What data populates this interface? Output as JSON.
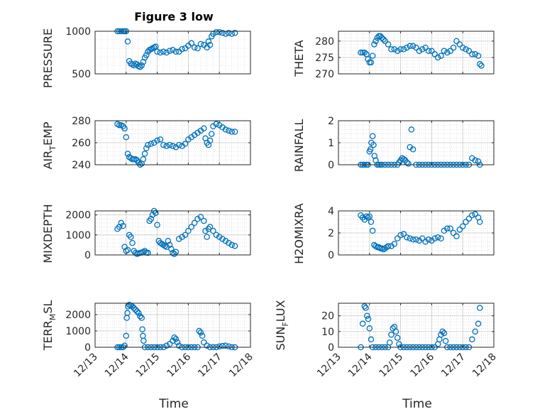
{
  "figure_title": "Figure 3 low",
  "x_axis_label": "Time",
  "chart_data": [
    {
      "type": "scatter",
      "id": "pressure",
      "ylabel": "PRESSURE",
      "ylim": [
        500,
        1000
      ],
      "yticks": [
        500,
        1000
      ],
      "xlim": [
        0,
        5
      ],
      "xticks": [
        "12/13",
        "12/14",
        "12/15",
        "12/16",
        "12/17",
        "12/18"
      ],
      "grid": true,
      "x": [
        0.72,
        0.78,
        0.84,
        0.9,
        0.95,
        1.0,
        1.05,
        1.1,
        1.15,
        1.2,
        1.25,
        1.3,
        1.35,
        1.4,
        1.45,
        1.5,
        1.55,
        1.6,
        1.65,
        1.7,
        1.75,
        1.8,
        1.85,
        1.9,
        1.95,
        2.0,
        2.1,
        2.2,
        2.3,
        2.4,
        2.5,
        2.6,
        2.7,
        2.8,
        2.9,
        3.0,
        3.1,
        3.2,
        3.3,
        3.4,
        3.5,
        3.6,
        3.65,
        3.7,
        3.75,
        3.8,
        3.9,
        4.0,
        4.1,
        4.2,
        4.3,
        4.4,
        4.5
      ],
      "y": [
        1000,
        1000,
        1000,
        1000,
        1000,
        1000,
        880,
        650,
        620,
        610,
        600,
        620,
        610,
        590,
        580,
        600,
        640,
        690,
        720,
        760,
        780,
        790,
        800,
        810,
        820,
        760,
        750,
        760,
        750,
        770,
        780,
        760,
        760,
        790,
        800,
        830,
        860,
        810,
        800,
        850,
        840,
        810,
        880,
        840,
        940,
        970,
        990,
        990,
        980,
        970,
        980,
        970,
        980
      ]
    },
    {
      "type": "scatter",
      "id": "theta",
      "ylabel": "THETA",
      "ylim": [
        270,
        283
      ],
      "yticks": [
        270,
        275,
        280
      ],
      "xlim": [
        0,
        5
      ],
      "xticks": [
        "12/13",
        "12/14",
        "12/15",
        "12/16",
        "12/17",
        "12/18"
      ],
      "grid": true,
      "x": [
        0.72,
        0.78,
        0.84,
        0.9,
        0.95,
        1.0,
        1.05,
        1.1,
        1.15,
        1.2,
        1.25,
        1.3,
        1.35,
        1.4,
        1.45,
        1.5,
        1.6,
        1.7,
        1.8,
        1.9,
        2.0,
        2.1,
        2.2,
        2.3,
        2.4,
        2.5,
        2.6,
        2.7,
        2.8,
        2.9,
        3.0,
        3.1,
        3.2,
        3.3,
        3.4,
        3.5,
        3.6,
        3.7,
        3.8,
        3.9,
        4.0,
        4.1,
        4.2,
        4.3,
        4.4,
        4.5,
        4.55,
        4.6
      ],
      "y": [
        276.5,
        276.5,
        276.5,
        276,
        274.5,
        273.5,
        273.5,
        275.5,
        279,
        280,
        281,
        281.5,
        281.5,
        281,
        280.5,
        280,
        279,
        277.5,
        277.5,
        277,
        277.5,
        277.5,
        278,
        278.5,
        278.5,
        278,
        277,
        277.5,
        278,
        277,
        277,
        276,
        275,
        275.5,
        277,
        276.5,
        277,
        278,
        280,
        279,
        278,
        277.5,
        277,
        276,
        276,
        275.5,
        273,
        272.5
      ]
    },
    {
      "type": "scatter",
      "id": "air_temp",
      "ylabel": "AIR_TEMP",
      "ylim": [
        240,
        280
      ],
      "yticks": [
        240,
        260,
        280
      ],
      "xlim": [
        0,
        5
      ],
      "xticks": [
        "12/13",
        "12/14",
        "12/15",
        "12/16",
        "12/17",
        "12/18"
      ],
      "grid": true,
      "x": [
        0.72,
        0.78,
        0.84,
        0.9,
        0.95,
        1.0,
        1.05,
        1.1,
        1.15,
        1.2,
        1.25,
        1.3,
        1.35,
        1.4,
        1.45,
        1.5,
        1.55,
        1.6,
        1.65,
        1.7,
        1.8,
        1.9,
        2.0,
        2.1,
        2.2,
        2.3,
        2.4,
        2.5,
        2.6,
        2.7,
        2.8,
        2.9,
        3.0,
        3.1,
        3.2,
        3.3,
        3.4,
        3.5,
        3.55,
        3.6,
        3.65,
        3.7,
        3.75,
        3.8,
        3.9,
        4.0,
        4.1,
        4.2,
        4.3,
        4.4,
        4.5
      ],
      "y": [
        277,
        276,
        276,
        275,
        273,
        265,
        250,
        247,
        246,
        245,
        245,
        245,
        244,
        242,
        240,
        241,
        245,
        250,
        255,
        258,
        259,
        260,
        262,
        263,
        258,
        257,
        258,
        257,
        256,
        258,
        257,
        259,
        263,
        265,
        267,
        269,
        271,
        273,
        264,
        260,
        258,
        262,
        268,
        275,
        277,
        276,
        274,
        272,
        271,
        270,
        270
      ]
    },
    {
      "type": "scatter",
      "id": "rainfall",
      "ylabel": "RAINFALL",
      "ylim": [
        0,
        2
      ],
      "yticks": [
        0,
        1,
        2
      ],
      "xlim": [
        0,
        5
      ],
      "xticks": [
        "12/13",
        "12/14",
        "12/15",
        "12/16",
        "12/17",
        "12/18"
      ],
      "grid": true,
      "x": [
        0.72,
        0.78,
        0.84,
        0.9,
        0.95,
        1.0,
        1.03,
        1.06,
        1.1,
        1.13,
        1.16,
        1.2,
        1.25,
        1.3,
        1.35,
        1.4,
        1.5,
        1.6,
        1.7,
        1.8,
        1.9,
        1.95,
        2.0,
        2.05,
        2.1,
        2.15,
        2.2,
        2.25,
        2.3,
        2.35,
        2.4,
        2.5,
        2.6,
        2.7,
        2.8,
        2.9,
        3.0,
        3.1,
        3.2,
        3.3,
        3.4,
        3.5,
        3.6,
        3.7,
        3.8,
        3.9,
        4.0,
        4.1,
        4.2,
        4.3,
        4.4,
        4.5,
        4.55
      ],
      "y": [
        0,
        0,
        0,
        0,
        0,
        0.6,
        0.7,
        1.0,
        1.3,
        0.9,
        0.4,
        0.2,
        0,
        0,
        0,
        0,
        0,
        0,
        0,
        0,
        0,
        0.1,
        0.2,
        0.3,
        0.25,
        0.2,
        0.1,
        0.05,
        0.8,
        1.6,
        0.7,
        0,
        0,
        0,
        0,
        0,
        0,
        0,
        0,
        0,
        0,
        0,
        0,
        0,
        0,
        0,
        0,
        0,
        0,
        0.3,
        0.2,
        0.15,
        0
      ]
    },
    {
      "type": "scatter",
      "id": "mixdepth",
      "ylabel": "MIXDEPTH",
      "ylim": [
        0,
        2200
      ],
      "yticks": [
        0,
        1000,
        2000
      ],
      "xlim": [
        0,
        5
      ],
      "xticks": [
        "12/13",
        "12/14",
        "12/15",
        "12/16",
        "12/17",
        "12/18"
      ],
      "grid": true,
      "x": [
        0.72,
        0.78,
        0.84,
        0.9,
        0.95,
        1.0,
        1.05,
        1.1,
        1.15,
        1.2,
        1.25,
        1.3,
        1.35,
        1.4,
        1.45,
        1.5,
        1.55,
        1.6,
        1.65,
        1.7,
        1.75,
        1.8,
        1.85,
        1.9,
        1.95,
        2.0,
        2.05,
        2.1,
        2.15,
        2.2,
        2.25,
        2.3,
        2.35,
        2.4,
        2.45,
        2.5,
        2.55,
        2.6,
        2.7,
        2.8,
        2.9,
        3.0,
        3.1,
        3.2,
        3.3,
        3.4,
        3.5,
        3.55,
        3.6,
        3.65,
        3.7,
        3.8,
        3.9,
        4.0,
        4.1,
        4.2,
        4.3,
        4.4,
        4.5
      ],
      "y": [
        1300,
        1400,
        1600,
        1450,
        400,
        200,
        250,
        1000,
        900,
        600,
        200,
        100,
        50,
        80,
        100,
        120,
        150,
        200,
        120,
        100,
        1700,
        1800,
        2000,
        2200,
        2100,
        1500,
        700,
        600,
        550,
        500,
        450,
        400,
        700,
        500,
        300,
        100,
        50,
        150,
        800,
        900,
        1000,
        1200,
        1400,
        1600,
        1800,
        1900,
        1700,
        1200,
        900,
        1300,
        1400,
        1200,
        1000,
        900,
        800,
        700,
        600,
        500,
        450
      ]
    },
    {
      "type": "scatter",
      "id": "h2omixra",
      "ylabel": "H2OMIXRA",
      "ylim": [
        0,
        4
      ],
      "yticks": [
        0,
        2,
        4
      ],
      "xlim": [
        0,
        5
      ],
      "xticks": [
        "12/13",
        "12/14",
        "12/15",
        "12/16",
        "12/17",
        "12/18"
      ],
      "grid": true,
      "x": [
        0.72,
        0.78,
        0.84,
        0.9,
        0.95,
        1.0,
        1.05,
        1.1,
        1.15,
        1.2,
        1.25,
        1.3,
        1.35,
        1.4,
        1.45,
        1.5,
        1.55,
        1.6,
        1.7,
        1.8,
        1.9,
        2.0,
        2.1,
        2.2,
        2.3,
        2.4,
        2.5,
        2.6,
        2.7,
        2.8,
        2.9,
        3.0,
        3.1,
        3.2,
        3.3,
        3.4,
        3.5,
        3.6,
        3.7,
        3.8,
        3.9,
        4.0,
        4.1,
        4.2,
        4.3,
        4.4,
        4.5,
        4.55
      ],
      "y": [
        3.6,
        3.4,
        3.2,
        3.5,
        3.4,
        3.5,
        3.0,
        2.2,
        0.9,
        0.8,
        0.7,
        0.7,
        0.6,
        0.6,
        0.5,
        0.6,
        0.7,
        0.8,
        0.8,
        1.0,
        1.5,
        1.8,
        1.9,
        1.6,
        1.5,
        1.4,
        1.4,
        1.3,
        1.5,
        1.2,
        1.4,
        1.3,
        1.5,
        1.6,
        1.5,
        2.2,
        2.4,
        2.4,
        2.0,
        1.7,
        2.3,
        2.6,
        3.0,
        3.3,
        3.6,
        3.7,
        3.4,
        3.0
      ]
    },
    {
      "type": "scatter",
      "id": "terr_msl",
      "ylabel": "TERR_MSL",
      "ylim": [
        0,
        2700
      ],
      "yticks": [
        0,
        1000,
        2000
      ],
      "xlim": [
        0,
        5
      ],
      "xticks": [
        "12/13",
        "12/14",
        "12/15",
        "12/16",
        "12/17",
        "12/18"
      ],
      "grid": true,
      "x": [
        0.72,
        0.78,
        0.84,
        0.9,
        0.95,
        1.0,
        1.02,
        1.04,
        1.06,
        1.1,
        1.15,
        1.2,
        1.25,
        1.3,
        1.35,
        1.4,
        1.45,
        1.5,
        1.52,
        1.54,
        1.56,
        1.6,
        1.7,
        1.8,
        1.9,
        2.0,
        2.1,
        2.2,
        2.3,
        2.4,
        2.5,
        2.55,
        2.6,
        2.65,
        2.7,
        2.8,
        2.9,
        3.0,
        3.1,
        3.2,
        3.3,
        3.35,
        3.4,
        3.45,
        3.5,
        3.6,
        3.7,
        3.8,
        3.9,
        4.0,
        4.1,
        4.2,
        4.3,
        4.4,
        4.5
      ],
      "y": [
        0,
        0,
        0,
        0,
        100,
        700,
        1800,
        2100,
        2500,
        2600,
        2550,
        2500,
        2400,
        2300,
        2200,
        2100,
        1900,
        1800,
        1100,
        700,
        400,
        0,
        0,
        0,
        0,
        0,
        0,
        0,
        100,
        200,
        400,
        600,
        500,
        300,
        100,
        0,
        0,
        0,
        0,
        0,
        0,
        1000,
        900,
        700,
        300,
        100,
        0,
        0,
        0,
        50,
        80,
        100,
        50,
        0,
        0
      ]
    },
    {
      "type": "scatter",
      "id": "sun_flux",
      "ylabel": "SUN_FLUX",
      "ylim": [
        0,
        28
      ],
      "yticks": [
        0,
        10,
        20
      ],
      "xlim": [
        0,
        5
      ],
      "xticks": [
        "12/13",
        "12/14",
        "12/15",
        "12/16",
        "12/17",
        "12/18"
      ],
      "grid": true,
      "x": [
        0.72,
        0.78,
        0.84,
        0.88,
        0.92,
        0.96,
        1.0,
        1.05,
        1.1,
        1.2,
        1.3,
        1.4,
        1.5,
        1.6,
        1.65,
        1.7,
        1.75,
        1.8,
        1.85,
        1.9,
        1.95,
        2.0,
        2.1,
        2.2,
        2.3,
        2.4,
        2.5,
        2.6,
        2.7,
        2.8,
        2.9,
        3.0,
        3.1,
        3.2,
        3.25,
        3.3,
        3.35,
        3.4,
        3.45,
        3.5,
        3.6,
        3.7,
        3.8,
        3.9,
        4.0,
        4.1,
        4.2,
        4.3,
        4.4,
        4.5,
        4.55
      ],
      "y": [
        0,
        15,
        26,
        25,
        20,
        18,
        12,
        5,
        0,
        0,
        0,
        0,
        0,
        0,
        3,
        8,
        12,
        13,
        10,
        6,
        2,
        0,
        0,
        0,
        0,
        0,
        0,
        0,
        0,
        0,
        0,
        0,
        0,
        2,
        5,
        8,
        10,
        9,
        4,
        0,
        0,
        0,
        0,
        0,
        0,
        0,
        0,
        5,
        10,
        15,
        25
      ]
    }
  ]
}
